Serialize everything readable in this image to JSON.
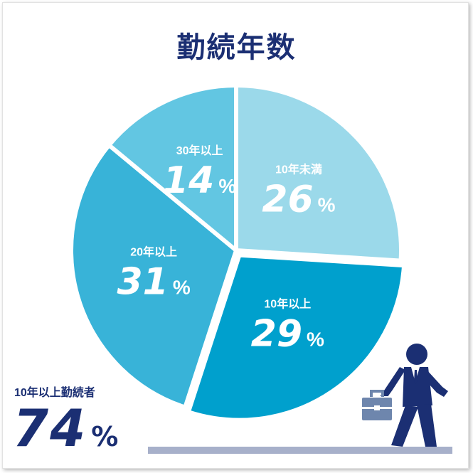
{
  "title": "勤続年数",
  "chart_data": {
    "type": "pie",
    "title": "勤続年数",
    "start_angle_deg": 0,
    "direction": "clockwise",
    "slices": [
      {
        "label": "10年未満",
        "value": 26,
        "value_text": "26",
        "unit": "%",
        "color": "#9bd9ea",
        "explode": 0
      },
      {
        "label": "10年以上",
        "value": 29,
        "value_text": "29",
        "unit": "%",
        "color": "#00a0cd",
        "explode": 8
      },
      {
        "label": "20年以上",
        "value": 31,
        "value_text": "31",
        "unit": "%",
        "color": "#38b3d8",
        "explode": 0
      },
      {
        "label": "30年以上",
        "value": 14,
        "value_text": "14",
        "unit": "%",
        "color": "#62c6e2",
        "explode": 0
      }
    ]
  },
  "summary": {
    "label": "10年以上勤続者",
    "value": "74",
    "unit": "%"
  },
  "colors": {
    "navy": "#1b2f73",
    "ground": "#a7b0ca",
    "briefcase": "#6e86ad"
  },
  "icons": {
    "walker": "walking-businessman-icon"
  }
}
